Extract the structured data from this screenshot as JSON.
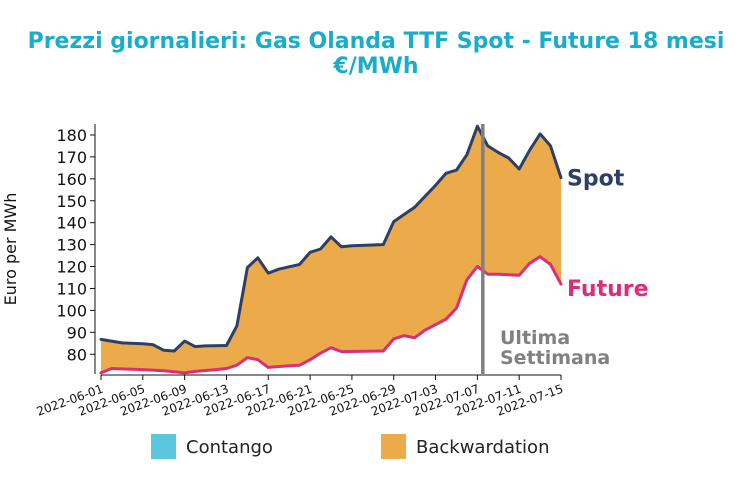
{
  "chart_data": {
    "type": "area",
    "title": "Prezzi giornalieri: Gas Olanda TTF Spot - Future 18 mesi",
    "subtitle": "€/MWh",
    "ylabel": "Euro per MWh",
    "xlabel": "",
    "ylim": [
      71,
      185
    ],
    "yticks": [
      "80",
      "90",
      "100",
      "110",
      "120",
      "130",
      "140",
      "150",
      "160",
      "170",
      "180"
    ],
    "xticks": [
      "2022-06-01",
      "2022-06-05",
      "2022-06-09",
      "2022-06-13",
      "2022-06-17",
      "2022-06-21",
      "2022-06-25",
      "2022-06-29",
      "2022-07-03",
      "2022-07-07",
      "2022-07-11",
      "2022-07-15"
    ],
    "x_start": "2022-06-01",
    "series": [
      {
        "name": "Spot",
        "color": "#2e3f66",
        "points": [
          [
            "2022-06-01",
            86.8
          ],
          [
            "2022-06-03",
            85.2
          ],
          [
            "2022-06-05",
            84.8
          ],
          [
            "2022-06-06",
            84.3
          ],
          [
            "2022-06-07",
            81.8
          ],
          [
            "2022-06-08",
            81.5
          ],
          [
            "2022-06-09",
            86.0
          ],
          [
            "2022-06-10",
            83.5
          ],
          [
            "2022-06-11",
            83.8
          ],
          [
            "2022-06-13",
            84.0
          ],
          [
            "2022-06-14",
            93.0
          ],
          [
            "2022-06-15",
            119.5
          ],
          [
            "2022-06-16",
            124.0
          ],
          [
            "2022-06-17",
            117.0
          ],
          [
            "2022-06-18",
            118.8
          ],
          [
            "2022-06-20",
            121.0
          ],
          [
            "2022-06-21",
            126.5
          ],
          [
            "2022-06-22",
            128.0
          ],
          [
            "2022-06-23",
            133.5
          ],
          [
            "2022-06-24",
            129.0
          ],
          [
            "2022-06-25",
            129.5
          ],
          [
            "2022-06-28",
            130.0
          ],
          [
            "2022-06-29",
            140.5
          ],
          [
            "2022-07-01",
            147.0
          ],
          [
            "2022-07-03",
            157.0
          ],
          [
            "2022-07-04",
            162.5
          ],
          [
            "2022-07-05",
            164.0
          ],
          [
            "2022-07-06",
            171.0
          ],
          [
            "2022-07-07",
            184.0
          ],
          [
            "2022-07-08",
            175.0
          ],
          [
            "2022-07-09",
            172.0
          ],
          [
            "2022-07-10",
            169.5
          ],
          [
            "2022-07-11",
            164.5
          ],
          [
            "2022-07-12",
            173.0
          ],
          [
            "2022-07-13",
            180.5
          ],
          [
            "2022-07-14",
            175.0
          ],
          [
            "2022-07-15",
            160.5
          ]
        ]
      },
      {
        "name": "Future",
        "color": "#d92f7a",
        "points": [
          [
            "2022-06-01",
            71.5
          ],
          [
            "2022-06-02",
            73.5
          ],
          [
            "2022-06-05",
            73.0
          ],
          [
            "2022-06-07",
            72.5
          ],
          [
            "2022-06-08",
            72.0
          ],
          [
            "2022-06-09",
            71.5
          ],
          [
            "2022-06-10",
            72.2
          ],
          [
            "2022-06-12",
            73.0
          ],
          [
            "2022-06-13",
            73.5
          ],
          [
            "2022-06-14",
            75.0
          ],
          [
            "2022-06-15",
            78.5
          ],
          [
            "2022-06-16",
            77.5
          ],
          [
            "2022-06-17",
            74.0
          ],
          [
            "2022-06-19",
            74.8
          ],
          [
            "2022-06-20",
            75.0
          ],
          [
            "2022-06-21",
            77.5
          ],
          [
            "2022-06-22",
            80.5
          ],
          [
            "2022-06-23",
            83.0
          ],
          [
            "2022-06-24",
            81.2
          ],
          [
            "2022-06-28",
            81.5
          ],
          [
            "2022-06-29",
            87.0
          ],
          [
            "2022-06-30",
            88.5
          ],
          [
            "2022-07-01",
            87.5
          ],
          [
            "2022-07-02",
            91.0
          ],
          [
            "2022-07-04",
            96.0
          ],
          [
            "2022-07-05",
            101.0
          ],
          [
            "2022-07-06",
            114.0
          ],
          [
            "2022-07-07",
            120.0
          ],
          [
            "2022-07-08",
            116.5
          ],
          [
            "2022-07-09",
            116.5
          ],
          [
            "2022-07-11",
            116.0
          ],
          [
            "2022-07-12",
            121.5
          ],
          [
            "2022-07-13",
            124.5
          ],
          [
            "2022-07-14",
            121.0
          ],
          [
            "2022-07-15",
            112.0
          ]
        ]
      }
    ],
    "fill": {
      "name": "Backwardation",
      "color": "#ebab4b"
    },
    "legend": [
      {
        "label": "Contango",
        "color": "#5bc7de"
      },
      {
        "label": "Backwardation",
        "color": "#ebab4b"
      }
    ],
    "legend_position": "bottom",
    "annotation": {
      "text_line1": "Ultima",
      "text_line2": "Settimana",
      "date": "2022-07-08",
      "color": "#808080"
    },
    "grid": false
  }
}
